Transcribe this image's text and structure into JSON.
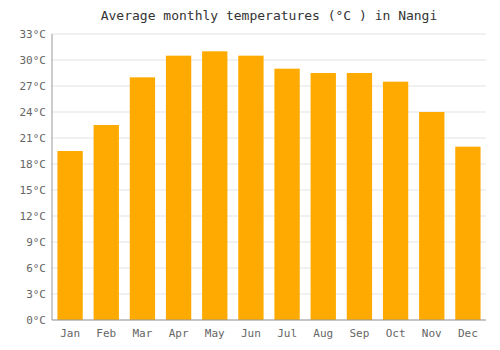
{
  "chart_data": {
    "type": "bar",
    "title": "Average monthly temperatures (°C ) in Nangi",
    "categories": [
      "Jan",
      "Feb",
      "Mar",
      "Apr",
      "May",
      "Jun",
      "Jul",
      "Aug",
      "Sep",
      "Oct",
      "Nov",
      "Dec"
    ],
    "values": [
      19.5,
      22.5,
      28.0,
      30.5,
      31.0,
      30.5,
      29.0,
      28.5,
      28.5,
      27.5,
      24.0,
      20.0
    ],
    "color": "#FFAA00",
    "ylim": [
      0,
      33
    ],
    "yticks": [
      {
        "value": 0,
        "label": "0°C"
      },
      {
        "value": 3,
        "label": "3°C"
      },
      {
        "value": 6,
        "label": "6°C"
      },
      {
        "value": 9,
        "label": "9°C"
      },
      {
        "value": 12,
        "label": "12°C"
      },
      {
        "value": 15,
        "label": "15°C"
      },
      {
        "value": 18,
        "label": "18°C"
      },
      {
        "value": 21,
        "label": "21°C"
      },
      {
        "value": 24,
        "label": "24°C"
      },
      {
        "value": 27,
        "label": "27°C"
      },
      {
        "value": 30,
        "label": "30°C"
      },
      {
        "value": 33,
        "label": "33°C"
      }
    ],
    "grid": true
  }
}
